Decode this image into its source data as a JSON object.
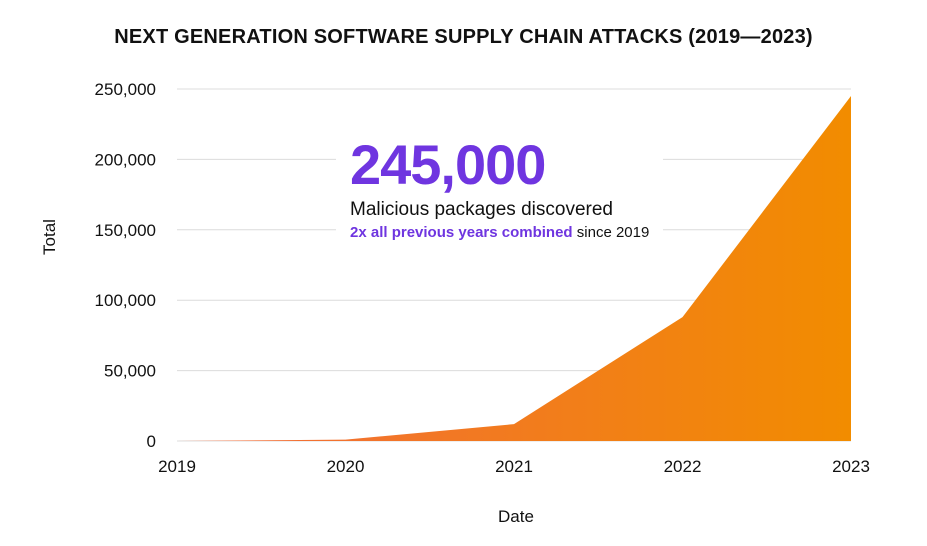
{
  "chart_data": {
    "type": "area",
    "title": "NEXT GENERATION SOFTWARE SUPPLY CHAIN ATTACKS (2019—2023)",
    "xlabel": "Date",
    "ylabel": "Total",
    "x": [
      "2019",
      "2020",
      "2021",
      "2022",
      "2023"
    ],
    "series": [
      {
        "values": [
          0,
          1000,
          12000,
          88000,
          245000
        ]
      }
    ],
    "ylim": [
      0,
      250000
    ],
    "yticks": [
      "0",
      "50,000",
      "100,000",
      "150,000",
      "200,000",
      "250,000"
    ],
    "ytick_values": [
      0,
      50000,
      100000,
      150000,
      200000,
      250000
    ],
    "grid": "horizontal",
    "colors": {
      "fill_start": "#f26a3d",
      "fill_end": "#f28c00",
      "grid": "#dcdcdc"
    }
  },
  "callout": {
    "number": "245,000",
    "line1": "Malicious packages discovered",
    "highlight": "2x all previous years combined",
    "rest": " since 2019",
    "accent": "#6f35e0"
  }
}
